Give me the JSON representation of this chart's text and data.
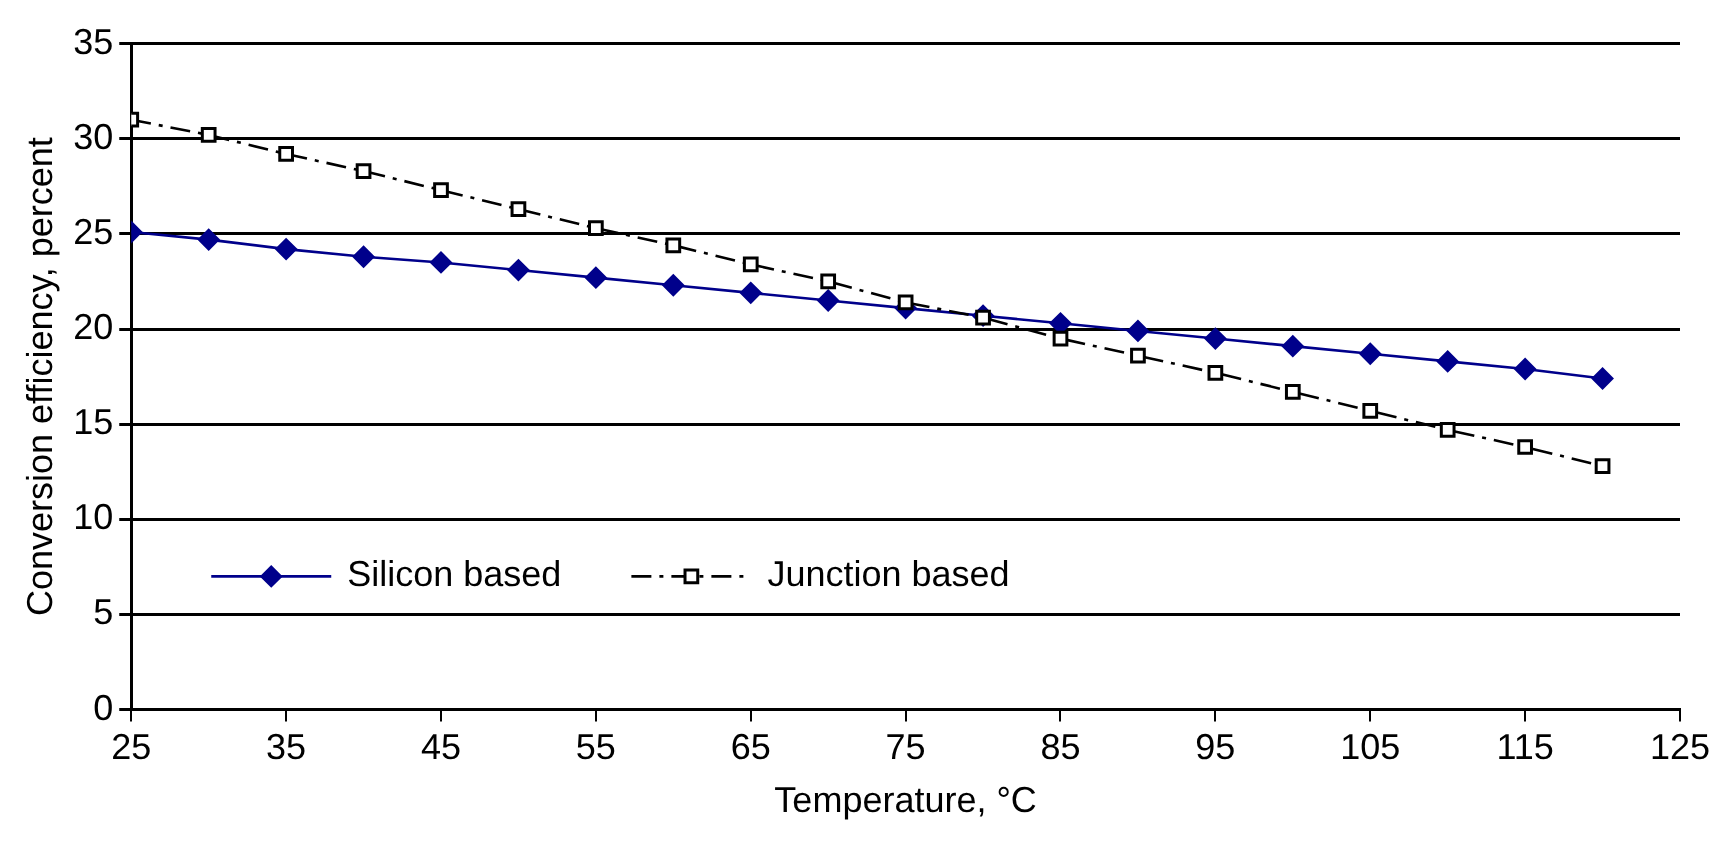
{
  "chart_data": {
    "type": "line",
    "xlabel": "Temperature, °C",
    "ylabel": "Conversion efficiency, percent",
    "x": [
      25,
      30,
      35,
      40,
      45,
      50,
      55,
      60,
      65,
      70,
      75,
      80,
      85,
      90,
      95,
      100,
      105,
      110,
      115,
      120
    ],
    "series": [
      {
        "name": "Silicon based",
        "color": "#00008b",
        "marker": "diamond",
        "line_style": "solid",
        "values": [
          25.1,
          24.7,
          24.2,
          23.8,
          23.5,
          23.1,
          22.7,
          22.3,
          21.9,
          21.5,
          21.1,
          20.7,
          20.3,
          19.9,
          19.5,
          19.1,
          18.7,
          18.3,
          17.9,
          17.4
        ]
      },
      {
        "name": "Junction based",
        "color": "#000000",
        "marker": "square",
        "line_style": "dashed",
        "values": [
          31.0,
          30.2,
          29.2,
          28.3,
          27.3,
          26.3,
          25.3,
          24.4,
          23.4,
          22.5,
          21.4,
          20.6,
          19.5,
          18.6,
          17.7,
          16.7,
          15.7,
          14.7,
          13.8,
          12.8
        ]
      }
    ],
    "xlim": [
      25,
      125
    ],
    "xticks": [
      25,
      35,
      45,
      55,
      65,
      75,
      85,
      95,
      105,
      115,
      125
    ],
    "ylim": [
      0,
      35
    ],
    "yticks": [
      0,
      5,
      10,
      15,
      20,
      25,
      30,
      35
    ],
    "grid": "y",
    "legend": "bottom left"
  }
}
